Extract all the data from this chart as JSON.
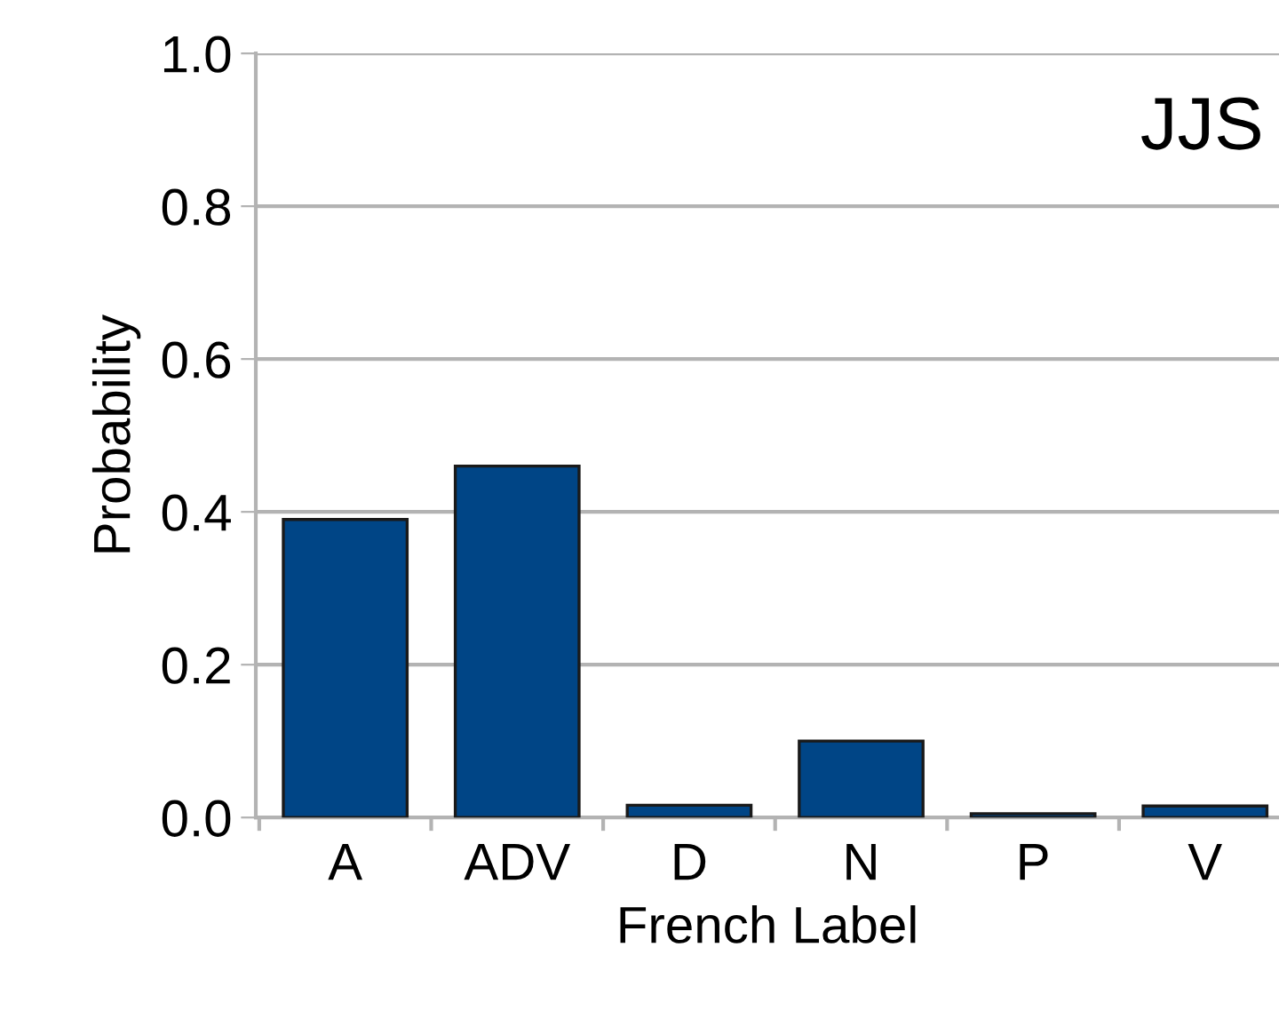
{
  "chart_data": {
    "type": "bar",
    "xlabel": "French Label",
    "ylabel": "Probability",
    "categories": [
      "A",
      "ADV",
      "D",
      "N",
      "P",
      "V"
    ],
    "values": [
      0.39,
      0.46,
      0.016,
      0.1,
      0.005,
      0.015
    ],
    "color": "#004586",
    "ylim": [
      0,
      1
    ],
    "yticks": [
      {
        "value": 0,
        "label": "0.0"
      },
      {
        "value": 0.2,
        "label": "0.2"
      },
      {
        "value": 0.4,
        "label": "0.4"
      },
      {
        "value": 0.6,
        "label": "0.6"
      },
      {
        "value": 0.8,
        "label": "0.8"
      },
      {
        "value": 1,
        "label": "1.0"
      }
    ],
    "grid": "y",
    "annotations": [
      "JJS"
    ]
  }
}
